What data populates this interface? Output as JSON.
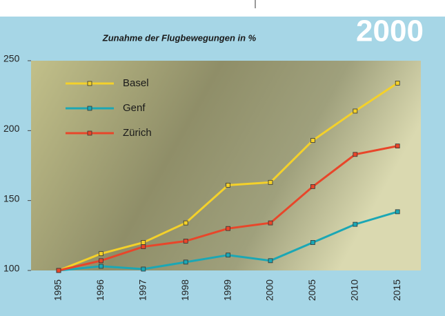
{
  "chart_data": {
    "type": "line",
    "title": "Zunahme der Flugbewegungen in %",
    "badge": "2000",
    "categories": [
      "1995",
      "1996",
      "1997",
      "1998",
      "1999",
      "2000",
      "2005",
      "2010",
      "2015"
    ],
    "series": [
      {
        "name": "Basel",
        "color": "#f4d12a",
        "values": [
          100,
          112,
          120,
          134,
          161,
          163,
          193,
          214,
          234
        ]
      },
      {
        "name": "Genf",
        "color": "#1ba7b5",
        "values": [
          100,
          103,
          101,
          106,
          111,
          107,
          120,
          133,
          142
        ]
      },
      {
        "name": "Zürich",
        "color": "#e8462a",
        "values": [
          100,
          107,
          117,
          121,
          130,
          134,
          160,
          183,
          189
        ]
      }
    ],
    "ylim": [
      100,
      250
    ],
    "yticks": [
      100,
      150,
      200,
      250
    ]
  }
}
